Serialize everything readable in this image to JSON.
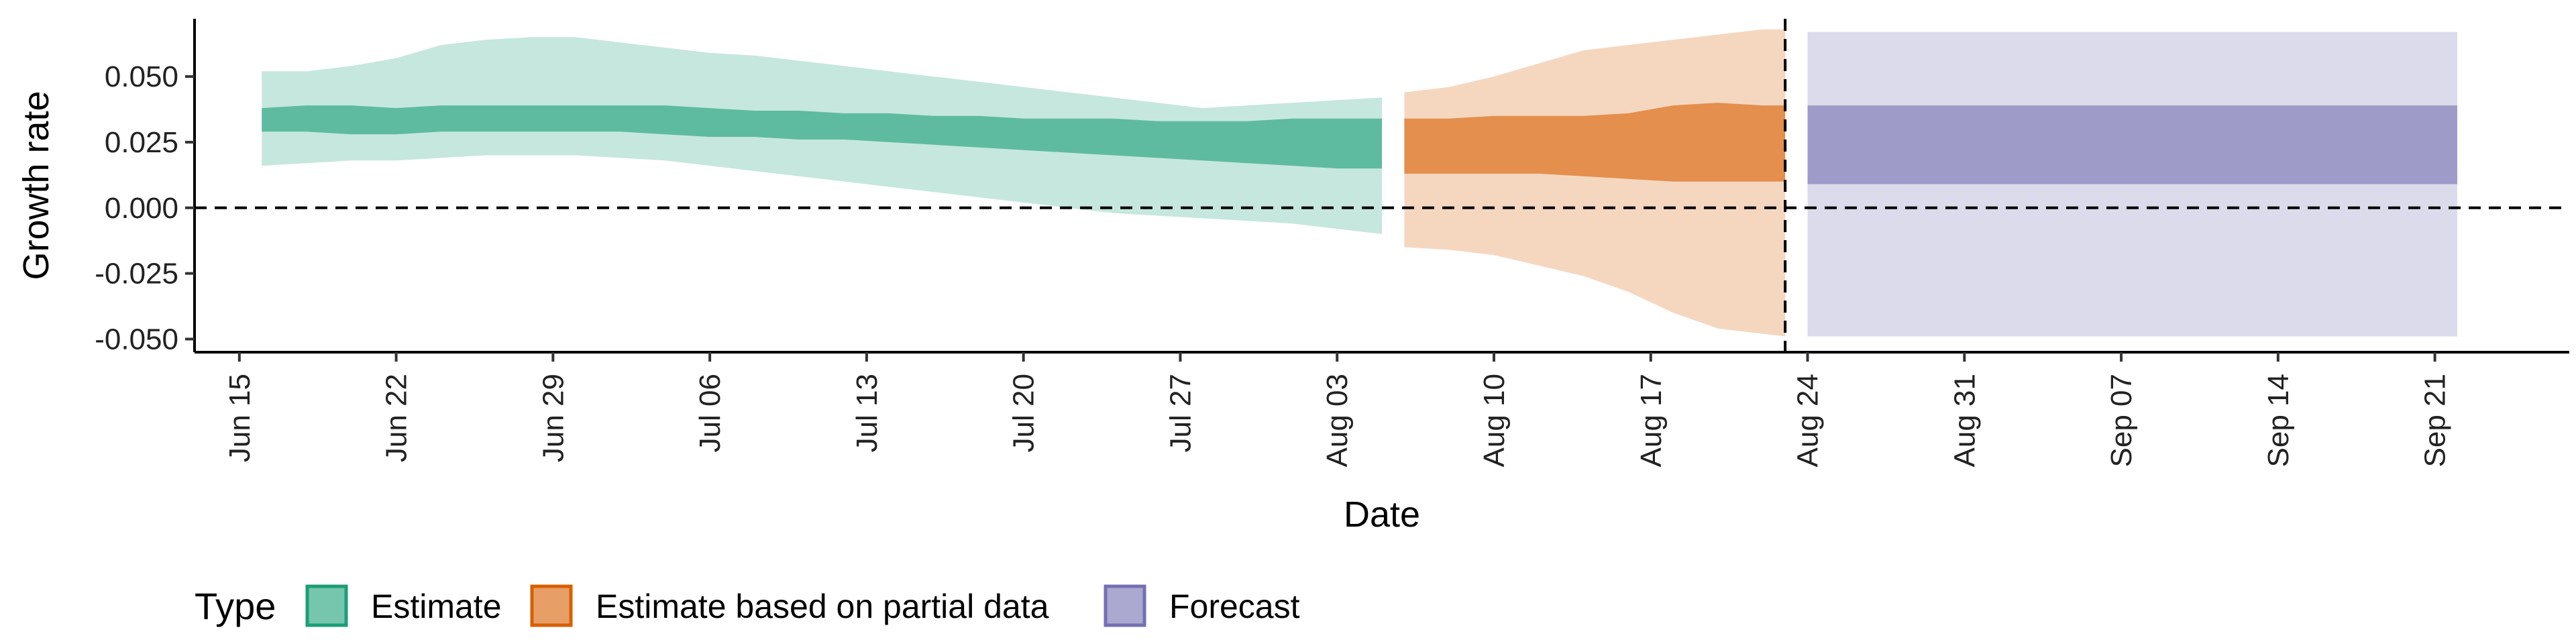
{
  "chart_data": {
    "type": "area",
    "xlabel": "Date",
    "ylabel": "Growth rate",
    "ylim": [
      -0.055,
      0.072
    ],
    "xlim": [
      "2020-06-13",
      "2020-09-27"
    ],
    "y_ticks": [
      -0.05,
      -0.025,
      0.0,
      0.025,
      0.05
    ],
    "y_tick_labels": [
      "-0.050",
      "-0.025",
      "0.000",
      "0.025",
      "0.050"
    ],
    "x_ticks": [
      "2020-06-15",
      "2020-06-22",
      "2020-06-29",
      "2020-07-06",
      "2020-07-13",
      "2020-07-20",
      "2020-07-27",
      "2020-08-03",
      "2020-08-10",
      "2020-08-17",
      "2020-08-24",
      "2020-08-31",
      "2020-09-07",
      "2020-09-14",
      "2020-09-21"
    ],
    "x_tick_labels": [
      "Jun 15",
      "Jun 22",
      "Jun 29",
      "Jul 06",
      "Jul 13",
      "Jul 20",
      "Jul 27",
      "Aug 03",
      "Aug 10",
      "Aug 17",
      "Aug 24",
      "Aug 31",
      "Sep 07",
      "Sep 14",
      "Sep 21"
    ],
    "hline": 0.0,
    "vline": "2020-08-23",
    "grid": false,
    "legend": {
      "title": "Type",
      "position": "bottom-left",
      "entries": [
        "Estimate",
        "Estimate based on partial data",
        "Forecast"
      ]
    },
    "colors": {
      "Estimate": "#1b9e77",
      "Estimate based on partial data": "#d95f02",
      "Forecast": "#7570b3"
    },
    "series": [
      {
        "name": "Estimate",
        "x": [
          "2020-06-16",
          "2020-06-18",
          "2020-06-20",
          "2020-06-22",
          "2020-06-24",
          "2020-06-26",
          "2020-06-28",
          "2020-06-30",
          "2020-07-02",
          "2020-07-04",
          "2020-07-06",
          "2020-07-08",
          "2020-07-10",
          "2020-07-12",
          "2020-07-14",
          "2020-07-16",
          "2020-07-18",
          "2020-07-20",
          "2020-07-22",
          "2020-07-24",
          "2020-07-26",
          "2020-07-28",
          "2020-07-30",
          "2020-08-01",
          "2020-08-03",
          "2020-08-05"
        ],
        "outer_upper": [
          0.052,
          0.052,
          0.054,
          0.057,
          0.062,
          0.064,
          0.065,
          0.065,
          0.063,
          0.061,
          0.059,
          0.058,
          0.056,
          0.054,
          0.052,
          0.05,
          0.048,
          0.046,
          0.044,
          0.042,
          0.04,
          0.038,
          0.039,
          0.04,
          0.041,
          0.042
        ],
        "inner_upper": [
          0.038,
          0.039,
          0.039,
          0.038,
          0.039,
          0.039,
          0.039,
          0.039,
          0.039,
          0.039,
          0.038,
          0.037,
          0.037,
          0.036,
          0.036,
          0.035,
          0.035,
          0.034,
          0.034,
          0.034,
          0.033,
          0.033,
          0.033,
          0.034,
          0.034,
          0.034
        ],
        "inner_lower": [
          0.029,
          0.029,
          0.028,
          0.028,
          0.029,
          0.029,
          0.029,
          0.029,
          0.029,
          0.028,
          0.027,
          0.027,
          0.026,
          0.026,
          0.025,
          0.024,
          0.023,
          0.022,
          0.021,
          0.02,
          0.019,
          0.018,
          0.017,
          0.016,
          0.015,
          0.015
        ],
        "outer_lower": [
          0.016,
          0.017,
          0.018,
          0.018,
          0.019,
          0.02,
          0.02,
          0.02,
          0.019,
          0.018,
          0.016,
          0.014,
          0.012,
          0.01,
          0.008,
          0.006,
          0.004,
          0.002,
          0.0,
          -0.002,
          -0.003,
          -0.004,
          -0.005,
          -0.006,
          -0.008,
          -0.01
        ]
      },
      {
        "name": "Estimate based on partial data",
        "x": [
          "2020-08-06",
          "2020-08-08",
          "2020-08-10",
          "2020-08-12",
          "2020-08-14",
          "2020-08-16",
          "2020-08-18",
          "2020-08-20",
          "2020-08-22",
          "2020-08-23"
        ],
        "outer_upper": [
          0.044,
          0.046,
          0.05,
          0.055,
          0.06,
          0.062,
          0.064,
          0.066,
          0.068,
          0.068
        ],
        "inner_upper": [
          0.034,
          0.034,
          0.035,
          0.035,
          0.035,
          0.036,
          0.039,
          0.04,
          0.039,
          0.039
        ],
        "inner_lower": [
          0.013,
          0.013,
          0.013,
          0.013,
          0.012,
          0.011,
          0.01,
          0.01,
          0.01,
          0.01
        ],
        "outer_lower": [
          -0.015,
          -0.016,
          -0.018,
          -0.022,
          -0.026,
          -0.032,
          -0.04,
          -0.046,
          -0.048,
          -0.049
        ]
      },
      {
        "name": "Forecast",
        "x": [
          "2020-08-24",
          "2020-09-22"
        ],
        "outer_upper": [
          0.067,
          0.067
        ],
        "inner_upper": [
          0.039,
          0.039
        ],
        "inner_lower": [
          0.009,
          0.009
        ],
        "outer_lower": [
          -0.049,
          -0.049
        ]
      }
    ]
  }
}
